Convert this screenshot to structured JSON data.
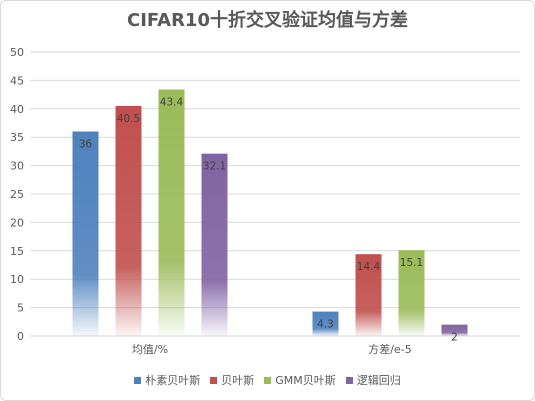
{
  "chart_data": {
    "type": "bar",
    "title": "CIFAR10十折交叉验证均值与方差",
    "categories": [
      "均值/%",
      "方差/e-5"
    ],
    "ylim": [
      0,
      50
    ],
    "yticks": [
      0,
      5,
      10,
      15,
      20,
      25,
      30,
      35,
      40,
      45,
      50
    ],
    "grid": true,
    "legend_position": "bottom",
    "series": [
      {
        "name": "朴素贝叶斯",
        "color": "#4f81bd",
        "values": [
          36,
          4.3
        ],
        "labels": [
          "36",
          "4.3"
        ]
      },
      {
        "name": "贝叶斯",
        "color": "#c0504d",
        "values": [
          40.5,
          14.4
        ],
        "labels": [
          "40.5",
          "14.4"
        ]
      },
      {
        "name": "GMM贝叶斯",
        "color": "#9bbb59",
        "values": [
          43.4,
          15.1
        ],
        "labels": [
          "43.4",
          "15.1"
        ]
      },
      {
        "name": "逻辑回归",
        "color": "#8064a2",
        "values": [
          32.1,
          2
        ],
        "labels": [
          "32.1",
          "2"
        ]
      }
    ]
  }
}
